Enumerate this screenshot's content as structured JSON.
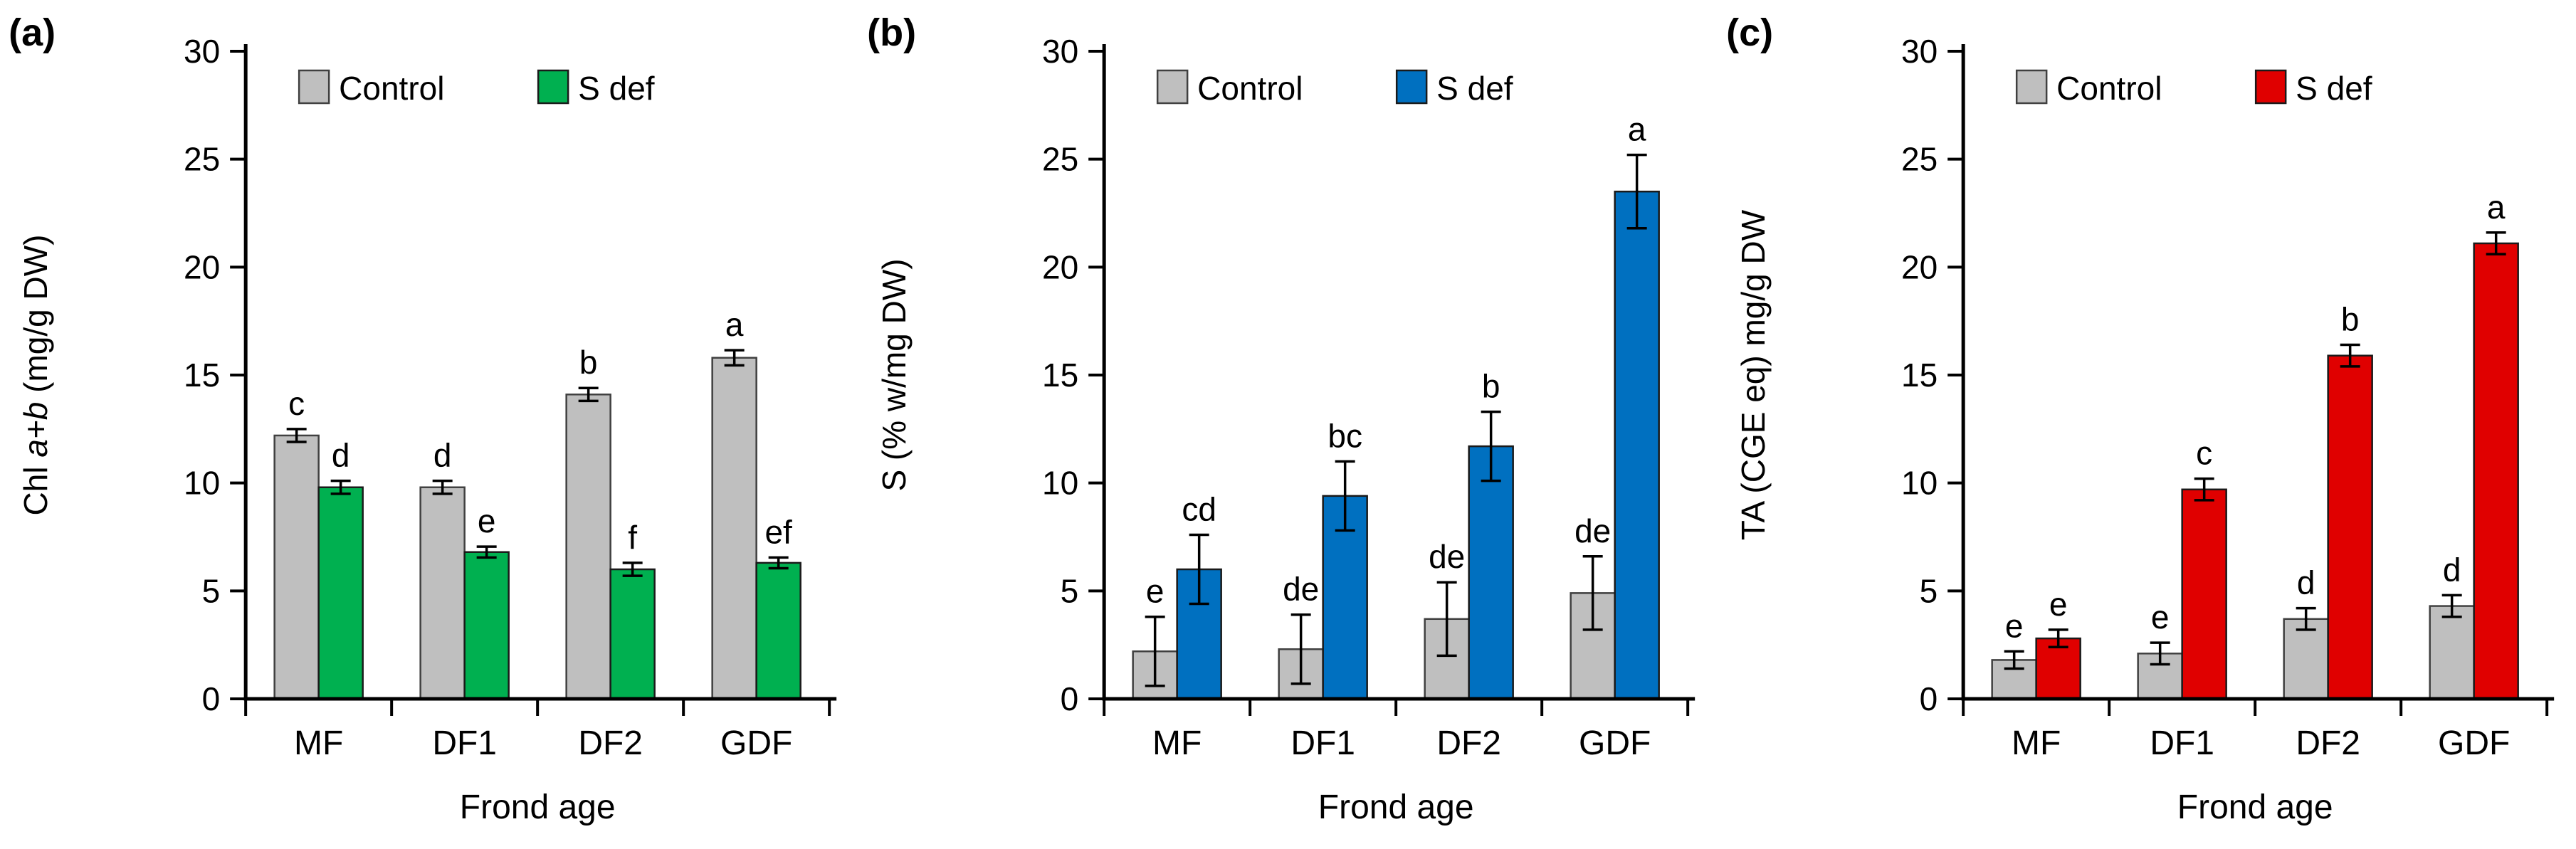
{
  "figure": {
    "background": "#ffffff",
    "legend": {
      "control_label": "Control",
      "treatment_label": "S def"
    },
    "xlabel": "Frond age",
    "colors": {
      "control_fill": "#BFBFBF",
      "control_border": "#404040",
      "treatment_border": "#1a1a1a",
      "axis": "#000000",
      "text": "#000000"
    }
  },
  "chart_data": [
    {
      "type": "bar",
      "panel_label": "(a)",
      "categories": [
        "MF",
        "DF1",
        "DF2",
        "GDF"
      ],
      "series": [
        {
          "name": "Control",
          "color": "#BFBFBF",
          "values": [
            12.2,
            9.8,
            14.1,
            15.8
          ],
          "errors": [
            0.3,
            0.3,
            0.3,
            0.35
          ],
          "letters": [
            "c",
            "d",
            "b",
            "a"
          ]
        },
        {
          "name": "S def",
          "color": "#00B050",
          "values": [
            9.8,
            6.8,
            6.0,
            6.3
          ],
          "errors": [
            0.3,
            0.25,
            0.3,
            0.25
          ],
          "letters": [
            "d",
            "e",
            "f",
            "ef"
          ]
        }
      ],
      "ylabel": "Chl a+b (mg/g DW)",
      "ylabel_segments": [
        {
          "text": "Chl ",
          "italic": false
        },
        {
          "text": "a+b",
          "italic": true
        },
        {
          "text": " (mg/g DW)",
          "italic": false
        }
      ],
      "xlabel": "Frond age",
      "ylim": [
        0,
        30
      ],
      "yticks": [
        0,
        5,
        10,
        15,
        20,
        25,
        30
      ],
      "grid": false,
      "legend_position": "top-inside"
    },
    {
      "type": "bar",
      "panel_label": "(b)",
      "categories": [
        "MF",
        "DF1",
        "DF2",
        "GDF"
      ],
      "series": [
        {
          "name": "Control",
          "color": "#BFBFBF",
          "values": [
            2.2,
            2.3,
            3.7,
            4.9
          ],
          "errors": [
            1.6,
            1.6,
            1.7,
            1.7
          ],
          "letters": [
            "e",
            "de",
            "de",
            "de"
          ]
        },
        {
          "name": "S def",
          "color": "#0070C0",
          "values": [
            6.0,
            9.4,
            11.7,
            23.5
          ],
          "errors": [
            1.6,
            1.6,
            1.6,
            1.7
          ],
          "letters": [
            "cd",
            "bc",
            "b",
            "a"
          ]
        }
      ],
      "ylabel": "S (% w/mg DW)",
      "ylabel_segments": [
        {
          "text": "S (% w/mg DW)",
          "italic": false
        }
      ],
      "xlabel": "Frond age",
      "ylim": [
        0,
        30
      ],
      "yticks": [
        0,
        5,
        10,
        15,
        20,
        25,
        30
      ],
      "grid": false,
      "legend_position": "top-inside"
    },
    {
      "type": "bar",
      "panel_label": "(c)",
      "categories": [
        "MF",
        "DF1",
        "DF2",
        "GDF"
      ],
      "series": [
        {
          "name": "Control",
          "color": "#BFBFBF",
          "values": [
            1.8,
            2.1,
            3.7,
            4.3
          ],
          "errors": [
            0.4,
            0.5,
            0.5,
            0.5
          ],
          "letters": [
            "e",
            "e",
            "d",
            "d"
          ]
        },
        {
          "name": "S def",
          "color": "#E00000",
          "values": [
            2.8,
            9.7,
            15.9,
            21.1
          ],
          "errors": [
            0.4,
            0.5,
            0.5,
            0.5
          ],
          "letters": [
            "e",
            "c",
            "b",
            "a"
          ]
        }
      ],
      "ylabel": "TA (CGE eq) mg/g DW",
      "ylabel_segments": [
        {
          "text": "TA (CGE eq) mg/g DW",
          "italic": false
        }
      ],
      "xlabel": "Frond age",
      "ylim": [
        0,
        30
      ],
      "yticks": [
        0,
        5,
        10,
        15,
        20,
        25,
        30
      ],
      "grid": false,
      "legend_position": "top-inside"
    }
  ]
}
